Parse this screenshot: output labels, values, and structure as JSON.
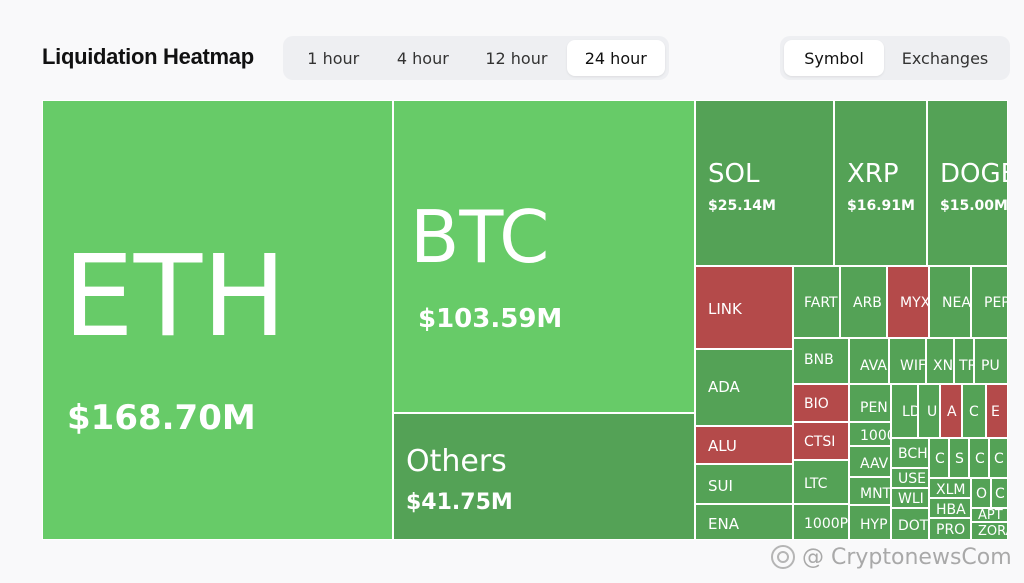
{
  "header": {
    "title": "Liquidation Heatmap"
  },
  "time_tabs": [
    {
      "label": "1 hour",
      "active": false
    },
    {
      "label": "4 hour",
      "active": false
    },
    {
      "label": "12 hour",
      "active": false
    },
    {
      "label": "24 hour",
      "active": true
    }
  ],
  "view_tabs": [
    {
      "label": "Symbol",
      "active": true
    },
    {
      "label": "Exchanges",
      "active": false
    }
  ],
  "colors": {
    "light_green": "#67cb68",
    "dark_green": "#54a256",
    "red": "#b44a4a"
  },
  "heatmap": {
    "tiles": [
      {
        "symbol": "ETH",
        "value": "$168.70M",
        "color": "light"
      },
      {
        "symbol": "BTC",
        "value": "$103.59M",
        "color": "light"
      },
      {
        "symbol": "Others",
        "value": "$41.75M",
        "color": "dark"
      },
      {
        "symbol": "SOL",
        "value": "$25.14M",
        "color": "dark"
      },
      {
        "symbol": "XRP",
        "value": "$16.91M",
        "color": "dark"
      },
      {
        "symbol": "DOGE",
        "value": "$15.00M",
        "color": "dark"
      },
      {
        "symbol": "LINK",
        "color": "red"
      },
      {
        "symbol": "ADA",
        "color": "dark"
      },
      {
        "symbol": "ALU",
        "color": "red"
      },
      {
        "symbol": "SUI",
        "color": "dark"
      },
      {
        "symbol": "ENA",
        "color": "dark"
      },
      {
        "symbol": "FART",
        "color": "dark"
      },
      {
        "symbol": "ARB",
        "color": "dark"
      },
      {
        "symbol": "MYX",
        "color": "red"
      },
      {
        "symbol": "NEA",
        "color": "dark"
      },
      {
        "symbol": "PEP",
        "color": "dark"
      },
      {
        "symbol": "BNB",
        "color": "dark"
      },
      {
        "symbol": "AVA",
        "color": "dark"
      },
      {
        "symbol": "WIF",
        "color": "dark"
      },
      {
        "symbol": "XN",
        "color": "dark"
      },
      {
        "symbol": "TR",
        "color": "dark"
      },
      {
        "symbol": "PU",
        "color": "dark"
      },
      {
        "symbol": "BIO",
        "color": "red"
      },
      {
        "symbol": "CTSI",
        "color": "red"
      },
      {
        "symbol": "LTC",
        "color": "dark"
      },
      {
        "symbol": "1000P",
        "color": "dark"
      },
      {
        "symbol": "PEN",
        "color": "dark"
      },
      {
        "symbol": "1000",
        "color": "dark"
      },
      {
        "symbol": "AAV",
        "color": "dark"
      },
      {
        "symbol": "MNT",
        "color": "dark"
      },
      {
        "symbol": "HYP",
        "color": "dark"
      },
      {
        "symbol": "LD",
        "color": "dark"
      },
      {
        "symbol": "U",
        "color": "dark"
      },
      {
        "symbol": "A",
        "color": "red"
      },
      {
        "symbol": "C",
        "color": "dark"
      },
      {
        "symbol": "E",
        "color": "red"
      },
      {
        "symbol": "BCH",
        "color": "dark"
      },
      {
        "symbol": "USE",
        "color": "dark"
      },
      {
        "symbol": "WLI",
        "color": "dark"
      },
      {
        "symbol": "DOT",
        "color": "dark"
      },
      {
        "symbol": "C",
        "color": "dark"
      },
      {
        "symbol": "S",
        "color": "dark"
      },
      {
        "symbol": "C",
        "color": "dark"
      },
      {
        "symbol": "C",
        "color": "dark"
      },
      {
        "symbol": "XLM",
        "color": "dark"
      },
      {
        "symbol": "HBA",
        "color": "dark"
      },
      {
        "symbol": "PRO",
        "color": "dark"
      },
      {
        "symbol": "O",
        "color": "dark"
      },
      {
        "symbol": "C",
        "color": "dark"
      },
      {
        "symbol": "APT",
        "color": "dark"
      },
      {
        "symbol": "ZORA",
        "color": "dark"
      }
    ]
  },
  "watermark": {
    "text": "@ CryptonewsCom"
  }
}
